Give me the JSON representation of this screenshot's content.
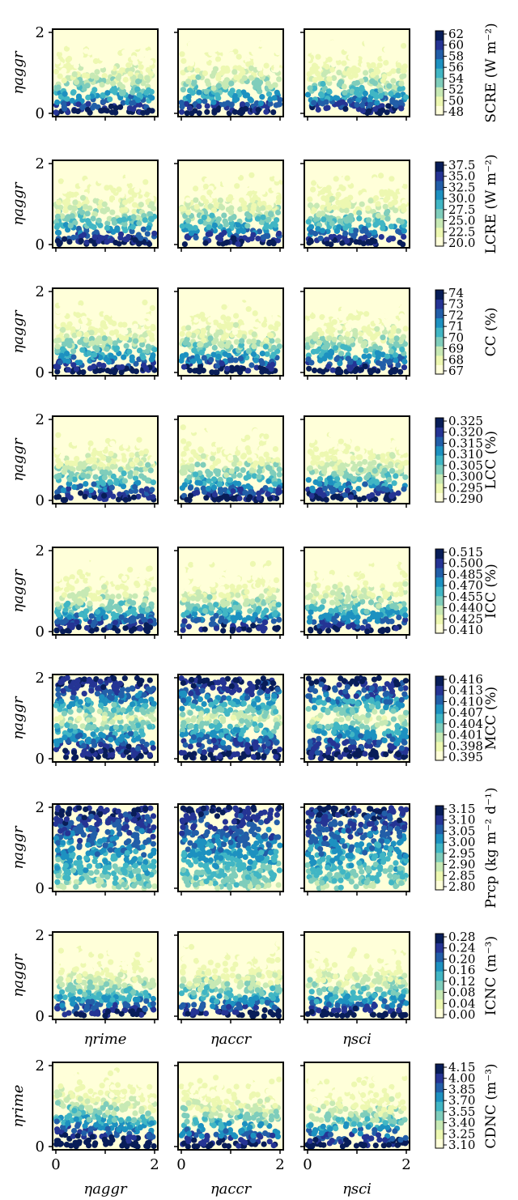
{
  "palette": [
    "#ffffd9",
    "#edf8b1",
    "#c7e9b4",
    "#7fcdbb",
    "#41b6c4",
    "#1d91c0",
    "#225ea8",
    "#253494",
    "#081d58"
  ],
  "chart_data": [
    {
      "type": "scatter",
      "row": 0,
      "variable": "SCRE",
      "colorbar_label": "SCRE (W m⁻²)",
      "colorbar_ticks": [
        "62",
        "60",
        "58",
        "56",
        "54",
        "52",
        "50",
        "48"
      ],
      "ylabel": "ηaggr",
      "xlabels": [
        "",
        "",
        ""
      ],
      "panel_x_vars": [
        "ηrime",
        "ηaccr",
        "ηsci"
      ],
      "ylim": [
        0,
        2
      ],
      "yticks": [
        "0",
        "2"
      ],
      "gradient": "y",
      "trend": [
        [
          2,
          1
        ],
        [
          3,
          1
        ],
        [
          4,
          1
        ]
      ],
      "vrange": [
        48,
        62
      ],
      "mode": "bottom-dark"
    },
    {
      "type": "scatter",
      "row": 1,
      "variable": "LCRE",
      "colorbar_label": "LCRE (W m⁻²)",
      "colorbar_ticks": [
        "37.5",
        "35.0",
        "32.5",
        "30.0",
        "27.5",
        "25.0",
        "22.5",
        "20.0"
      ],
      "ylabel": "ηaggr",
      "xlabels": [
        "",
        "",
        ""
      ],
      "ylim": [
        0,
        2
      ],
      "yticks": [
        "0",
        "2"
      ],
      "vrange": [
        20,
        37.5
      ],
      "mode": "bottom-dark"
    },
    {
      "type": "scatter",
      "row": 2,
      "variable": "CC",
      "colorbar_label": "CC (%)",
      "colorbar_ticks": [
        "74",
        "73",
        "72",
        "71",
        "70",
        "69",
        "68",
        "67"
      ],
      "ylabel": "ηaggr",
      "xlabels": [
        "",
        "",
        ""
      ],
      "ylim": [
        0,
        2
      ],
      "yticks": [
        "0",
        "2"
      ],
      "vrange": [
        67,
        74
      ],
      "mode": "bottom-dark"
    },
    {
      "type": "scatter",
      "row": 3,
      "variable": "LCC",
      "colorbar_label": "LCC (%)",
      "colorbar_ticks": [
        "0.325",
        "0.320",
        "0.315",
        "0.310",
        "0.305",
        "0.300",
        "0.295",
        "0.290"
      ],
      "ylabel": "ηaggr",
      "xlabels": [
        "",
        "",
        ""
      ],
      "ylim": [
        0,
        2
      ],
      "yticks": [
        "0",
        "2"
      ],
      "vrange": [
        0.29,
        0.325
      ],
      "mode": "bottom-dark"
    },
    {
      "type": "scatter",
      "row": 4,
      "variable": "ICC",
      "colorbar_label": "ICC (%)",
      "colorbar_ticks": [
        "0.515",
        "0.500",
        "0.485",
        "0.470",
        "0.455",
        "0.440",
        "0.425",
        "0.410"
      ],
      "ylabel": "ηaggr",
      "xlabels": [
        "",
        "",
        ""
      ],
      "ylim": [
        0,
        2
      ],
      "yticks": [
        "0",
        "2"
      ],
      "vrange": [
        0.41,
        0.515
      ],
      "mode": "bottom-dark"
    },
    {
      "type": "scatter",
      "row": 5,
      "variable": "MCC",
      "colorbar_label": "MCC (%)",
      "colorbar_ticks": [
        "0.416",
        "0.413",
        "0.410",
        "0.407",
        "0.404",
        "0.401",
        "0.398",
        "0.395"
      ],
      "ylabel": "ηaggr",
      "xlabels": [
        "",
        "",
        ""
      ],
      "ylim": [
        0,
        2
      ],
      "yticks": [
        "0",
        "2"
      ],
      "vrange": [
        0.395,
        0.416
      ],
      "mode": "banded"
    },
    {
      "type": "scatter",
      "row": 6,
      "variable": "Prcp",
      "colorbar_label": "Prcp (kg m⁻² d⁻¹)",
      "colorbar_ticks": [
        "3.15",
        "3.10",
        "3.05",
        "3.00",
        "2.95",
        "2.90",
        "2.85",
        "2.80"
      ],
      "ylabel": "ηaggr",
      "xlabels": [
        "",
        "",
        ""
      ],
      "ylim": [
        0,
        2
      ],
      "yticks": [
        "0",
        "2"
      ],
      "vrange": [
        2.8,
        3.15
      ],
      "mode": "top-dark"
    },
    {
      "type": "scatter",
      "row": 7,
      "variable": "ICNC",
      "colorbar_label": "ICNC (m⁻³)",
      "colorbar_ticks": [
        "0.28",
        "0.24",
        "0.20",
        "0.16",
        "0.12",
        "0.08",
        "0.04",
        "0.00"
      ],
      "ylabel": "ηaggr",
      "xlabels": [
        "ηrime",
        "ηaccr",
        "ηsci"
      ],
      "ylim": [
        0,
        2
      ],
      "yticks": [
        "0",
        "2"
      ],
      "vrange": [
        0,
        0.28
      ],
      "mode": "bottom-dark"
    },
    {
      "type": "scatter",
      "row": 8,
      "variable": "CDNC",
      "colorbar_label": "CDNC (m⁻³)",
      "colorbar_ticks": [
        "4.15",
        "4.00",
        "3.85",
        "3.70",
        "3.55",
        "3.40",
        "3.25",
        "3.10"
      ],
      "ylabel": "ηrime",
      "xlabels": [
        "ηaggr",
        "ηaccr",
        "ηsci"
      ],
      "xticks": [
        "0",
        "2"
      ],
      "xlim": [
        0,
        2
      ],
      "ylim": [
        0,
        2
      ],
      "yticks": [
        "0",
        "2"
      ],
      "vrange": [
        3.1,
        4.15
      ],
      "mode": "bottom-dark-left"
    }
  ]
}
